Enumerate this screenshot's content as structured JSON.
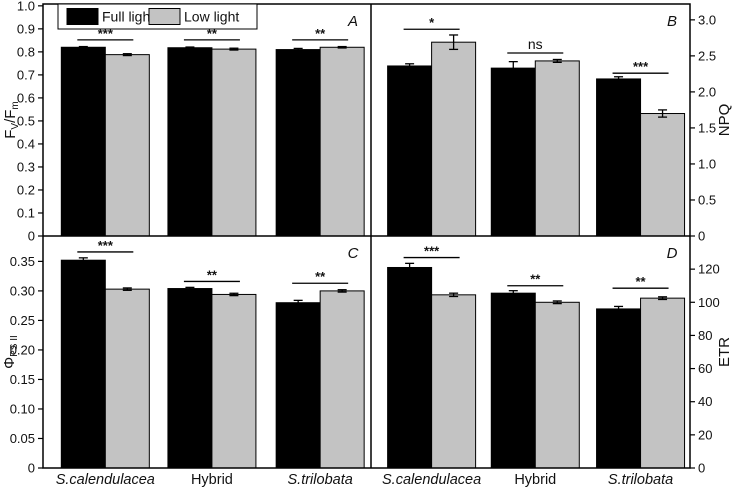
{
  "figure": {
    "background": "#ffffff",
    "frame_color": "#000000",
    "legend": {
      "items": [
        {
          "label": "Full light",
          "color": "#000000"
        },
        {
          "label": "Low light",
          "color": "#c3c3c3"
        }
      ]
    },
    "categories": [
      {
        "label": "S.calendulacea",
        "italic": true
      },
      {
        "label": "Hybrid",
        "italic": false
      },
      {
        "label": "S.trilobata",
        "italic": true
      }
    ]
  },
  "chart_data": [
    {
      "panel": "A",
      "type": "bar",
      "title": "",
      "xlabel": "",
      "ylabel": "Fv/Fm",
      "ylabel_parts": [
        {
          "t": "F"
        },
        {
          "t": "V",
          "sub": true
        },
        {
          "t": "/F"
        },
        {
          "t": "m",
          "sub": true
        }
      ],
      "axis_side": "left",
      "ylim": [
        0,
        1.008
      ],
      "yticks": [
        0,
        0.1,
        0.2,
        0.3,
        0.4,
        0.5,
        0.6,
        0.7,
        0.8,
        0.9,
        1.0
      ],
      "ytick_labels": [
        "0",
        "0.1",
        "0.2",
        "0.3",
        "0.4",
        "0.5",
        "0.6",
        "0.7",
        "0.8",
        "0.9",
        "1.0"
      ],
      "categories": [
        "S.calendulacea",
        "Hybrid",
        "S.trilobata"
      ],
      "series": [
        {
          "name": "Full light",
          "values": [
            0.82,
            0.818,
            0.81
          ],
          "errors": [
            0.003,
            0.003,
            0.005
          ]
        },
        {
          "name": "Low light",
          "values": [
            0.788,
            0.812,
            0.82
          ],
          "errors": [
            0.004,
            0.004,
            0.003
          ]
        }
      ],
      "significance": [
        {
          "label": "***",
          "line_y": 0.852
        },
        {
          "label": "**",
          "line_y": 0.852
        },
        {
          "label": "**",
          "line_y": 0.852
        }
      ],
      "legend_in_panel": true,
      "grid": false
    },
    {
      "panel": "B",
      "type": "bar",
      "title": "",
      "xlabel": "",
      "ylabel": "NPQ",
      "ylabel_parts": [
        {
          "t": "NPQ"
        }
      ],
      "axis_side": "right",
      "ylim": [
        0,
        3.22
      ],
      "yticks": [
        0,
        0.5,
        1.0,
        1.5,
        2.0,
        2.5,
        3.0
      ],
      "ytick_labels": [
        "0",
        "0.5",
        "1.0",
        "1.5",
        "2.0",
        "2.5",
        "3.0"
      ],
      "categories": [
        "S.calendulacea",
        "Hybrid",
        "S.trilobata"
      ],
      "series": [
        {
          "name": "Full light",
          "values": [
            2.36,
            2.33,
            2.18
          ],
          "errors": [
            0.03,
            0.09,
            0.03
          ]
        },
        {
          "name": "Low light",
          "values": [
            2.69,
            2.43,
            1.7
          ],
          "errors": [
            0.1,
            0.02,
            0.05
          ]
        }
      ],
      "significance": [
        {
          "label": "*",
          "line_y": 2.87
        },
        {
          "label": "ns",
          "line_y": 2.54
        },
        {
          "label": "***",
          "line_y": 2.26
        }
      ],
      "legend_in_panel": false,
      "grid": false
    },
    {
      "panel": "C",
      "type": "bar",
      "title": "",
      "xlabel": "",
      "ylabel": "PhiPS II",
      "ylabel_parts": [
        {
          "t": "Φ"
        },
        {
          "t": "PS II",
          "sub": true
        }
      ],
      "axis_side": "left",
      "ylim": [
        0,
        0.393
      ],
      "yticks": [
        0,
        0.05,
        0.1,
        0.15,
        0.2,
        0.25,
        0.3,
        0.35
      ],
      "ytick_labels": [
        "0",
        "0.05",
        "0.10",
        "0.15",
        "0.20",
        "0.25",
        "0.30",
        "0.35"
      ],
      "categories": [
        "S.calendulacea",
        "Hybrid",
        "S.trilobata"
      ],
      "series": [
        {
          "name": "Full light",
          "values": [
            0.352,
            0.304,
            0.28
          ],
          "errors": [
            0.004,
            0.002,
            0.004
          ]
        },
        {
          "name": "Low light",
          "values": [
            0.303,
            0.294,
            0.3
          ],
          "errors": [
            0.002,
            0.002,
            0.002
          ]
        }
      ],
      "significance": [
        {
          "label": "***",
          "line_y": 0.366
        },
        {
          "label": "**",
          "line_y": 0.316
        },
        {
          "label": "**",
          "line_y": 0.313
        }
      ],
      "legend_in_panel": false,
      "grid": false
    },
    {
      "panel": "D",
      "type": "bar",
      "title": "",
      "xlabel": "",
      "ylabel": "ETR",
      "ylabel_parts": [
        {
          "t": "ETR"
        }
      ],
      "axis_side": "right",
      "ylim": [
        0,
        140
      ],
      "yticks": [
        0,
        20,
        40,
        60,
        80,
        100,
        120
      ],
      "ytick_labels": [
        "0",
        "20",
        "40",
        "60",
        "80",
        "100",
        "120"
      ],
      "categories": [
        "S.calendulacea",
        "Hybrid",
        "S.trilobata"
      ],
      "series": [
        {
          "name": "Full light",
          "values": [
            121,
            105.5,
            96
          ],
          "errors": [
            2.5,
            1.5,
            1.5
          ]
        },
        {
          "name": "Low light",
          "values": [
            104.5,
            100,
            102.5
          ],
          "errors": [
            1.0,
            0.8,
            0.8
          ]
        }
      ],
      "significance": [
        {
          "label": "***",
          "line_y": 127
        },
        {
          "label": "**",
          "line_y": 110
        },
        {
          "label": "**",
          "line_y": 108.5
        }
      ],
      "legend_in_panel": false,
      "grid": false
    }
  ]
}
